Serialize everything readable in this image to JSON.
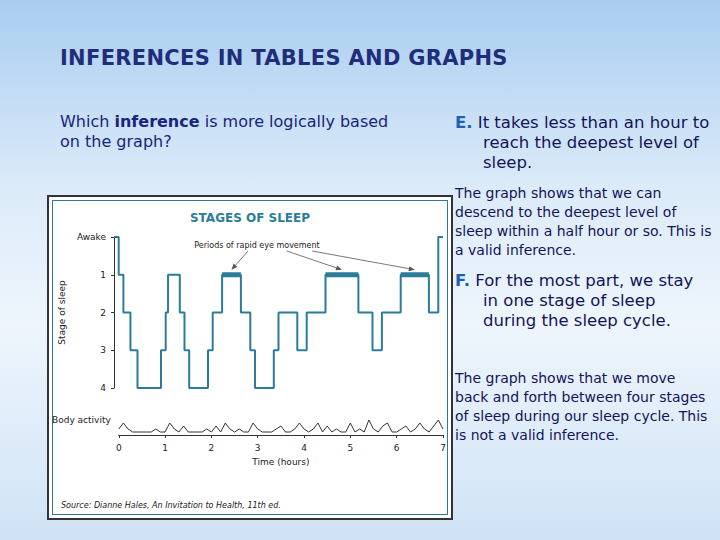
{
  "slide": {
    "title": "INFERENCES IN TABLES AND GRAPHS",
    "question": [
      {
        "text": "Which "
      },
      {
        "text": "inference",
        "bold": true
      },
      {
        "text": " is more logically based on the graph?"
      }
    ],
    "options": [
      {
        "letter": "E.",
        "text": "It takes less than an hour to reach the deepest level of sleep.",
        "explanation": "The graph shows that we can descend to the deepest level of sleep within a half hour or so. This is a valid inference."
      },
      {
        "letter": "F.",
        "text": "For the most part, we stay in one stage of sleep during the sleep cycle.",
        "explanation": "The graph shows that we move back and forth between four stages of sleep during our sleep cycle.  This is not a valid inference."
      }
    ]
  },
  "chart_data": [
    {
      "type": "line",
      "title": "STAGES OF SLEEP",
      "ylabel": "Stage of sleep",
      "annotation": "Periods of rapid eye movement",
      "source": "Source: Dianne Hales, An Invitation to Health, 11th ed.",
      "color": "#2b7c99",
      "line_style": "step",
      "x": [
        0,
        0.1,
        0.2,
        0.35,
        0.5,
        1.0,
        1.1,
        1.15,
        1.4,
        1.5,
        1.6,
        2.0,
        2.1,
        2.3,
        2.7,
        2.9,
        3.0,
        3.4,
        3.5,
        3.9,
        4.1,
        4.5,
        5.2,
        5.5,
        5.7,
        6.1,
        6.7,
        6.9,
        7.0
      ],
      "values": [
        0,
        1,
        2,
        3,
        4,
        3,
        2,
        1,
        2,
        3,
        4,
        3,
        2,
        1,
        2,
        3,
        4,
        3,
        2,
        3,
        2,
        1,
        2,
        3,
        2,
        1,
        2,
        0,
        0
      ],
      "rem_periods": [
        [
          2.3,
          2.7
        ],
        [
          4.5,
          5.2
        ],
        [
          6.1,
          6.7
        ]
      ],
      "rem_stage": 1,
      "xlim": [
        0,
        7
      ],
      "ylim": [
        0,
        4
      ],
      "yticks": [
        {
          "value": 0,
          "label": "Awake"
        },
        1,
        2,
        3,
        4
      ],
      "tick_labels": "y",
      "grid": false
    },
    {
      "type": "line",
      "ylabel": "Body activity",
      "xlabel": "Time (hours)",
      "color": "#333333",
      "x": [
        0,
        0.1,
        0.2,
        0.3,
        0.4,
        0.5,
        0.6,
        0.7,
        0.8,
        0.9,
        1.0,
        1.1,
        1.2,
        1.3,
        1.4,
        1.5,
        1.6,
        1.7,
        1.8,
        1.9,
        2.0,
        2.1,
        2.2,
        2.3,
        2.4,
        2.5,
        2.6,
        2.7,
        2.8,
        2.9,
        3.0,
        3.1,
        3.2,
        3.3,
        3.4,
        3.5,
        3.6,
        3.7,
        3.8,
        3.9,
        4.0,
        4.1,
        4.2,
        4.3,
        4.4,
        4.5,
        4.6,
        4.7,
        4.8,
        4.9,
        5.0,
        5.1,
        5.2,
        5.3,
        5.4,
        5.5,
        5.6,
        5.7,
        5.8,
        5.9,
        6.0,
        6.1,
        6.2,
        6.3,
        6.4,
        6.5,
        6.6,
        6.7,
        6.8,
        6.9,
        7.0
      ],
      "values": [
        2,
        4,
        2,
        1,
        1,
        1,
        1,
        1,
        2,
        1,
        1,
        4,
        2,
        1,
        3,
        1,
        1,
        1,
        1,
        2,
        1,
        3,
        1,
        4,
        2,
        1,
        2,
        1,
        1,
        4,
        2,
        1,
        1,
        1,
        2,
        3,
        1,
        1,
        2,
        4,
        2,
        1,
        2,
        4,
        1,
        3,
        1,
        2,
        1,
        1,
        4,
        1,
        2,
        1,
        5,
        2,
        1,
        3,
        4,
        1,
        1,
        2,
        3,
        1,
        2,
        4,
        2,
        1,
        3,
        5,
        2
      ],
      "xlim": [
        0,
        7
      ],
      "xticks": [
        0,
        1,
        2,
        3,
        4,
        5,
        6,
        7
      ],
      "ylim": [
        0,
        10
      ],
      "tick_labels": "x",
      "grid": false
    }
  ]
}
